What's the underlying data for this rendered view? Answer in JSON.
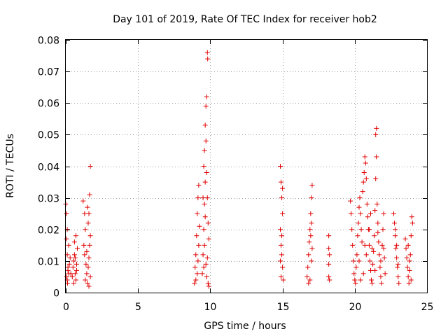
{
  "chart_data": {
    "type": "scatter",
    "title": "Day 101 of 2019, Rate Of TEC Index for receiver hob2",
    "xlabel": "GPS time / hours",
    "ylabel": "ROTI / TECUs",
    "xlim": [
      0,
      25
    ],
    "ylim": [
      0,
      0.08
    ],
    "xticks": [
      0,
      5,
      10,
      15,
      20,
      25
    ],
    "xtick_labels": [
      "0",
      "5",
      "10",
      "15",
      "20",
      "25"
    ],
    "yticks": [
      0,
      0.01,
      0.02,
      0.03,
      0.04,
      0.05,
      0.06,
      0.07,
      0.08
    ],
    "ytick_labels": [
      "0",
      "0.01",
      "0.02",
      "0.03",
      "0.04",
      "0.05",
      "0.06",
      "0.07",
      "0.08"
    ],
    "grid": true,
    "marker": "+",
    "marker_color": "#e00000",
    "series": [
      {
        "points": [
          [
            0.0,
            0.028
          ],
          [
            0.05,
            0.025
          ],
          [
            0.1,
            0.02
          ],
          [
            0.1,
            0.012
          ],
          [
            0.15,
            0.008
          ],
          [
            0.2,
            0.006
          ],
          [
            0.05,
            0.005
          ],
          [
            0.1,
            0.004
          ],
          [
            0.15,
            0.007
          ],
          [
            0.25,
            0.009
          ],
          [
            0.3,
            0.011
          ],
          [
            0.35,
            0.006
          ],
          [
            0.2,
            0.015
          ],
          [
            0.05,
            0.017
          ],
          [
            0.12,
            0.003
          ],
          [
            0.45,
            0.005
          ],
          [
            0.5,
            0.008
          ],
          [
            0.55,
            0.01
          ],
          [
            0.6,
            0.012
          ],
          [
            0.65,
            0.006
          ],
          [
            0.7,
            0.004
          ],
          [
            0.75,
            0.009
          ],
          [
            0.8,
            0.014
          ],
          [
            0.6,
            0.016
          ],
          [
            0.7,
            0.018
          ],
          [
            0.55,
            0.003
          ],
          [
            0.65,
            0.011
          ],
          [
            0.75,
            0.007
          ],
          [
            1.2,
            0.029
          ],
          [
            1.3,
            0.025
          ],
          [
            1.35,
            0.02
          ],
          [
            1.25,
            0.015
          ],
          [
            1.3,
            0.012
          ],
          [
            1.4,
            0.009
          ],
          [
            1.45,
            0.006
          ],
          [
            1.35,
            0.004
          ],
          [
            1.5,
            0.003
          ],
          [
            1.55,
            0.008
          ],
          [
            1.6,
            0.011
          ],
          [
            1.65,
            0.015
          ],
          [
            1.7,
            0.018
          ],
          [
            1.55,
            0.022
          ],
          [
            1.6,
            0.025
          ],
          [
            1.65,
            0.031
          ],
          [
            1.5,
            0.027
          ],
          [
            1.7,
            0.04
          ],
          [
            1.45,
            0.013
          ],
          [
            1.6,
            0.002
          ],
          [
            1.7,
            0.005
          ],
          [
            8.9,
            0.003
          ],
          [
            8.95,
            0.008
          ],
          [
            9.0,
            0.012
          ],
          [
            9.05,
            0.018
          ],
          [
            9.1,
            0.025
          ],
          [
            9.15,
            0.03
          ],
          [
            9.2,
            0.034
          ],
          [
            9.1,
            0.006
          ],
          [
            9.2,
            0.015
          ],
          [
            9.25,
            0.021
          ],
          [
            9.0,
            0.004
          ],
          [
            9.15,
            0.01
          ],
          [
            9.45,
            0.006
          ],
          [
            9.5,
            0.012
          ],
          [
            9.55,
            0.02
          ],
          [
            9.6,
            0.028
          ],
          [
            9.65,
            0.035
          ],
          [
            9.55,
            0.04
          ],
          [
            9.6,
            0.045
          ],
          [
            9.65,
            0.053
          ],
          [
            9.7,
            0.059
          ],
          [
            9.75,
            0.062
          ],
          [
            9.8,
            0.076
          ],
          [
            9.82,
            0.074
          ],
          [
            9.7,
            0.048
          ],
          [
            9.75,
            0.038
          ],
          [
            9.8,
            0.03
          ],
          [
            9.85,
            0.022
          ],
          [
            9.6,
            0.015
          ],
          [
            9.7,
            0.009
          ],
          [
            9.75,
            0.005
          ],
          [
            9.85,
            0.003
          ],
          [
            9.9,
            0.002
          ],
          [
            9.8,
            0.011
          ],
          [
            9.5,
            0.03
          ],
          [
            9.65,
            0.024
          ],
          [
            9.9,
            0.017
          ],
          [
            9.55,
            0.008
          ],
          [
            14.85,
            0.04
          ],
          [
            14.9,
            0.035
          ],
          [
            14.95,
            0.03
          ],
          [
            15.0,
            0.025
          ],
          [
            14.85,
            0.02
          ],
          [
            14.9,
            0.015
          ],
          [
            14.95,
            0.012
          ],
          [
            15.0,
            0.008
          ],
          [
            14.9,
            0.005
          ],
          [
            15.05,
            0.004
          ],
          [
            14.95,
            0.018
          ],
          [
            15.0,
            0.033
          ],
          [
            14.85,
            0.01
          ],
          [
            16.7,
            0.005
          ],
          [
            16.75,
            0.008
          ],
          [
            16.8,
            0.012
          ],
          [
            16.85,
            0.016
          ],
          [
            16.9,
            0.02
          ],
          [
            16.95,
            0.025
          ],
          [
            17.0,
            0.03
          ],
          [
            17.05,
            0.034
          ],
          [
            16.9,
            0.004
          ],
          [
            17.0,
            0.01
          ],
          [
            17.05,
            0.014
          ],
          [
            16.8,
            0.003
          ],
          [
            16.95,
            0.018
          ],
          [
            17.0,
            0.022
          ],
          [
            18.2,
            0.018
          ],
          [
            18.2,
            0.014
          ],
          [
            18.25,
            0.012
          ],
          [
            18.2,
            0.009
          ],
          [
            18.2,
            0.005
          ],
          [
            18.25,
            0.004
          ],
          [
            19.7,
            0.029
          ],
          [
            19.75,
            0.025
          ],
          [
            19.8,
            0.02
          ],
          [
            19.85,
            0.015
          ],
          [
            19.9,
            0.01
          ],
          [
            19.95,
            0.006
          ],
          [
            20.0,
            0.004
          ],
          [
            20.05,
            0.003
          ],
          [
            20.1,
            0.008
          ],
          [
            20.15,
            0.012
          ],
          [
            20.2,
            0.018
          ],
          [
            20.25,
            0.022
          ],
          [
            20.3,
            0.027
          ],
          [
            20.35,
            0.03
          ],
          [
            20.4,
            0.025
          ],
          [
            20.45,
            0.02
          ],
          [
            20.5,
            0.016
          ],
          [
            20.55,
            0.032
          ],
          [
            20.6,
            0.035
          ],
          [
            20.65,
            0.038
          ],
          [
            20.7,
            0.043
          ],
          [
            20.75,
            0.041
          ],
          [
            20.8,
            0.036
          ],
          [
            20.85,
            0.028
          ],
          [
            20.9,
            0.024
          ],
          [
            20.95,
            0.02
          ],
          [
            21.0,
            0.015
          ],
          [
            21.05,
            0.01
          ],
          [
            21.1,
            0.007
          ],
          [
            21.15,
            0.004
          ],
          [
            21.2,
            0.003
          ],
          [
            21.25,
            0.009
          ],
          [
            21.3,
            0.013
          ],
          [
            21.35,
            0.018
          ],
          [
            21.4,
            0.026
          ],
          [
            21.45,
            0.036
          ],
          [
            21.5,
            0.052
          ],
          [
            21.45,
            0.05
          ],
          [
            21.5,
            0.043
          ],
          [
            21.55,
            0.028
          ],
          [
            21.6,
            0.022
          ],
          [
            21.65,
            0.016
          ],
          [
            21.7,
            0.012
          ],
          [
            21.75,
            0.008
          ],
          [
            21.8,
            0.005
          ],
          [
            21.85,
            0.003
          ],
          [
            21.9,
            0.015
          ],
          [
            21.95,
            0.02
          ],
          [
            22.0,
            0.025
          ],
          [
            22.05,
            0.011
          ],
          [
            22.1,
            0.006
          ],
          [
            20.3,
            0.01
          ],
          [
            20.6,
            0.006
          ],
          [
            20.8,
            0.012
          ],
          [
            21.0,
            0.02
          ],
          [
            21.2,
            0.014
          ],
          [
            21.4,
            0.007
          ],
          [
            21.6,
            0.019
          ],
          [
            21.8,
            0.01
          ],
          [
            22.0,
            0.014
          ],
          [
            20.4,
            0.004
          ],
          [
            20.7,
            0.015
          ],
          [
            21.1,
            0.025
          ],
          [
            22.7,
            0.025
          ],
          [
            22.75,
            0.022
          ],
          [
            22.8,
            0.018
          ],
          [
            22.85,
            0.014
          ],
          [
            22.9,
            0.011
          ],
          [
            22.95,
            0.008
          ],
          [
            23.0,
            0.005
          ],
          [
            23.05,
            0.003
          ],
          [
            22.8,
            0.02
          ],
          [
            22.9,
            0.015
          ],
          [
            23.0,
            0.009
          ],
          [
            23.5,
            0.017
          ],
          [
            23.55,
            0.014
          ],
          [
            23.6,
            0.011
          ],
          [
            23.65,
            0.008
          ],
          [
            23.7,
            0.005
          ],
          [
            23.75,
            0.003
          ],
          [
            23.8,
            0.007
          ],
          [
            23.85,
            0.012
          ],
          [
            23.9,
            0.018
          ],
          [
            23.95,
            0.024
          ],
          [
            24.0,
            0.022
          ],
          [
            23.7,
            0.015
          ],
          [
            23.8,
            0.01
          ],
          [
            23.9,
            0.004
          ]
        ]
      }
    ]
  }
}
